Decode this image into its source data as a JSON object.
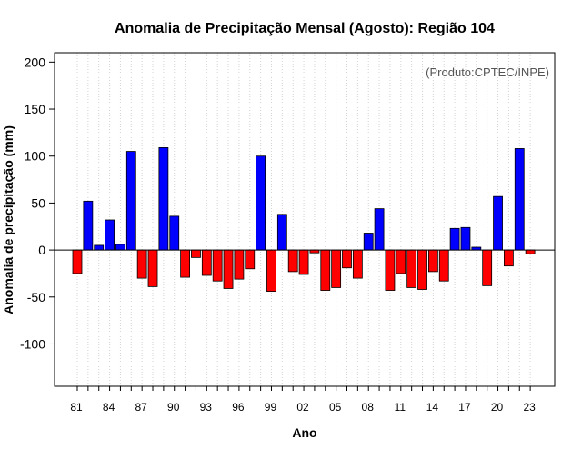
{
  "chart_data": {
    "type": "bar",
    "title": "Anomalia de Precipitação Mensal (Agosto): Região 104",
    "xlabel": "Ano",
    "ylabel": "Anomalia de precipitação (mm)",
    "annotation": "(Produto:CPTEC/INPE)",
    "ylim": [
      -145,
      210
    ],
    "yticks": [
      -100,
      -50,
      0,
      50,
      100,
      150,
      200
    ],
    "xtick_labels": [
      "81",
      "84",
      "87",
      "90",
      "93",
      "96",
      "99",
      "02",
      "05",
      "08",
      "11",
      "14",
      "17",
      "20",
      "23"
    ],
    "grid": "vertical-dotted",
    "colors": {
      "positive": "#0000ff",
      "negative": "#ff0000",
      "grid": "#d3d3d3"
    },
    "years": [
      1981,
      1982,
      1983,
      1984,
      1985,
      1986,
      1987,
      1988,
      1989,
      1990,
      1991,
      1992,
      1993,
      1994,
      1995,
      1996,
      1997,
      1998,
      1999,
      2000,
      2001,
      2002,
      2003,
      2004,
      2005,
      2006,
      2007,
      2008,
      2009,
      2010,
      2011,
      2012,
      2013,
      2014,
      2015,
      2016,
      2017,
      2018,
      2019,
      2020,
      2021,
      2022,
      2023
    ],
    "values": [
      -25,
      52,
      5,
      32,
      6,
      105,
      -30,
      -39,
      109,
      36,
      -29,
      -8,
      -27,
      -33,
      -41,
      -31,
      -20,
      100,
      -44,
      38,
      -23,
      -26,
      -3,
      -43,
      -40,
      -19,
      -30,
      18,
      44,
      -43,
      -25,
      -40,
      -42,
      -23,
      -33,
      23,
      24,
      3,
      -38,
      57,
      -17,
      108,
      -4
    ]
  }
}
